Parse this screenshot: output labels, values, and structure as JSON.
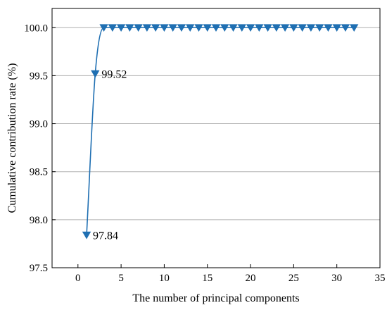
{
  "chart_data": {
    "type": "line",
    "title": "",
    "xlabel": "The number of principal components",
    "ylabel": "Cumulative contribution rate (%)",
    "xlim": [
      -3,
      35
    ],
    "ylim": [
      97.5,
      100.2
    ],
    "xticks": [
      0,
      5,
      10,
      15,
      20,
      25,
      30,
      35
    ],
    "yticks": [
      97.5,
      98.0,
      98.5,
      99.0,
      99.5,
      100.0
    ],
    "ytick_labels": [
      "97.5",
      "98.0",
      "98.5",
      "99.0",
      "99.5",
      "100.0"
    ],
    "grid": "horizontal",
    "marker": "triangle-down",
    "series_color": "#1f6fb2",
    "x": [
      1,
      2,
      3,
      4,
      5,
      6,
      7,
      8,
      9,
      10,
      11,
      12,
      13,
      14,
      15,
      16,
      17,
      18,
      19,
      20,
      21,
      22,
      23,
      24,
      25,
      26,
      27,
      28,
      29,
      30,
      31,
      32
    ],
    "series": [
      {
        "values": [
          97.84,
          99.52,
          100.0,
          100.0,
          100.0,
          100.0,
          100.0,
          100.0,
          100.0,
          100.0,
          100.0,
          100.0,
          100.0,
          100.0,
          100.0,
          100.0,
          100.0,
          100.0,
          100.0,
          100.0,
          100.0,
          100.0,
          100.0,
          100.0,
          100.0,
          100.0,
          100.0,
          100.0,
          100.0,
          100.0,
          100.0,
          100.0
        ]
      }
    ],
    "annotations": [
      {
        "x": 1,
        "y": 97.84,
        "text": "97.84"
      },
      {
        "x": 2,
        "y": 99.52,
        "text": "99.52"
      }
    ]
  }
}
